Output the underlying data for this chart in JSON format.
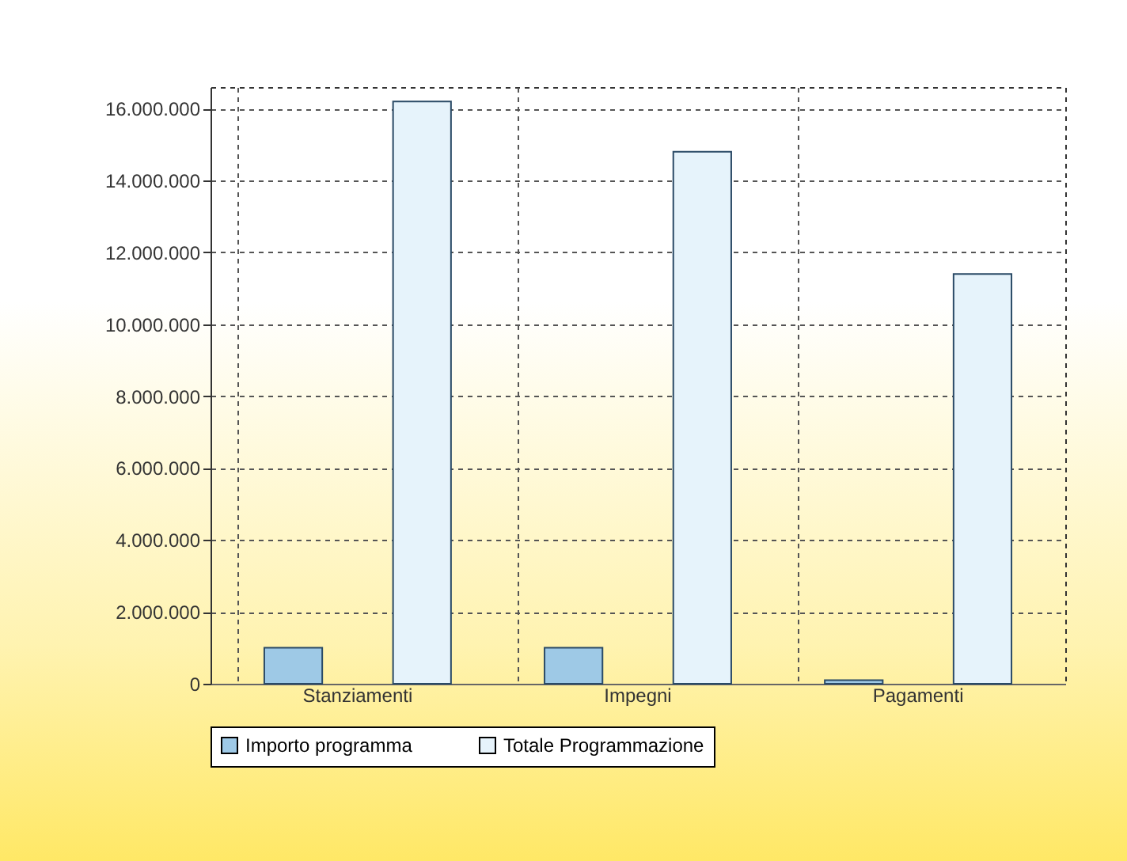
{
  "chart_data": {
    "type": "bar",
    "categories": [
      "Stanziamenti",
      "Impegni",
      "Pagamenti"
    ],
    "series": [
      {
        "name": "Importo programma",
        "color": "#9ec9e6",
        "values": [
          1000000,
          1000000,
          100000
        ]
      },
      {
        "name": "Totale Programmazione",
        "color": "#e6f3fb",
        "values": [
          16200000,
          14800000,
          11400000
        ]
      }
    ],
    "ylim": [
      0,
      16600000
    ],
    "yticks": [
      {
        "value": 0,
        "label": "0"
      },
      {
        "value": 2000000,
        "label": "2.000.000"
      },
      {
        "value": 4000000,
        "label": "4.000.000"
      },
      {
        "value": 6000000,
        "label": "6.000.000"
      },
      {
        "value": 8000000,
        "label": "8.000.000"
      },
      {
        "value": 10000000,
        "label": "10.000.000"
      },
      {
        "value": 12000000,
        "label": "12.000.000"
      },
      {
        "value": 14000000,
        "label": "14.000.000"
      },
      {
        "value": 16000000,
        "label": "16.000.000"
      }
    ],
    "grid": true,
    "legend": "bottom"
  }
}
